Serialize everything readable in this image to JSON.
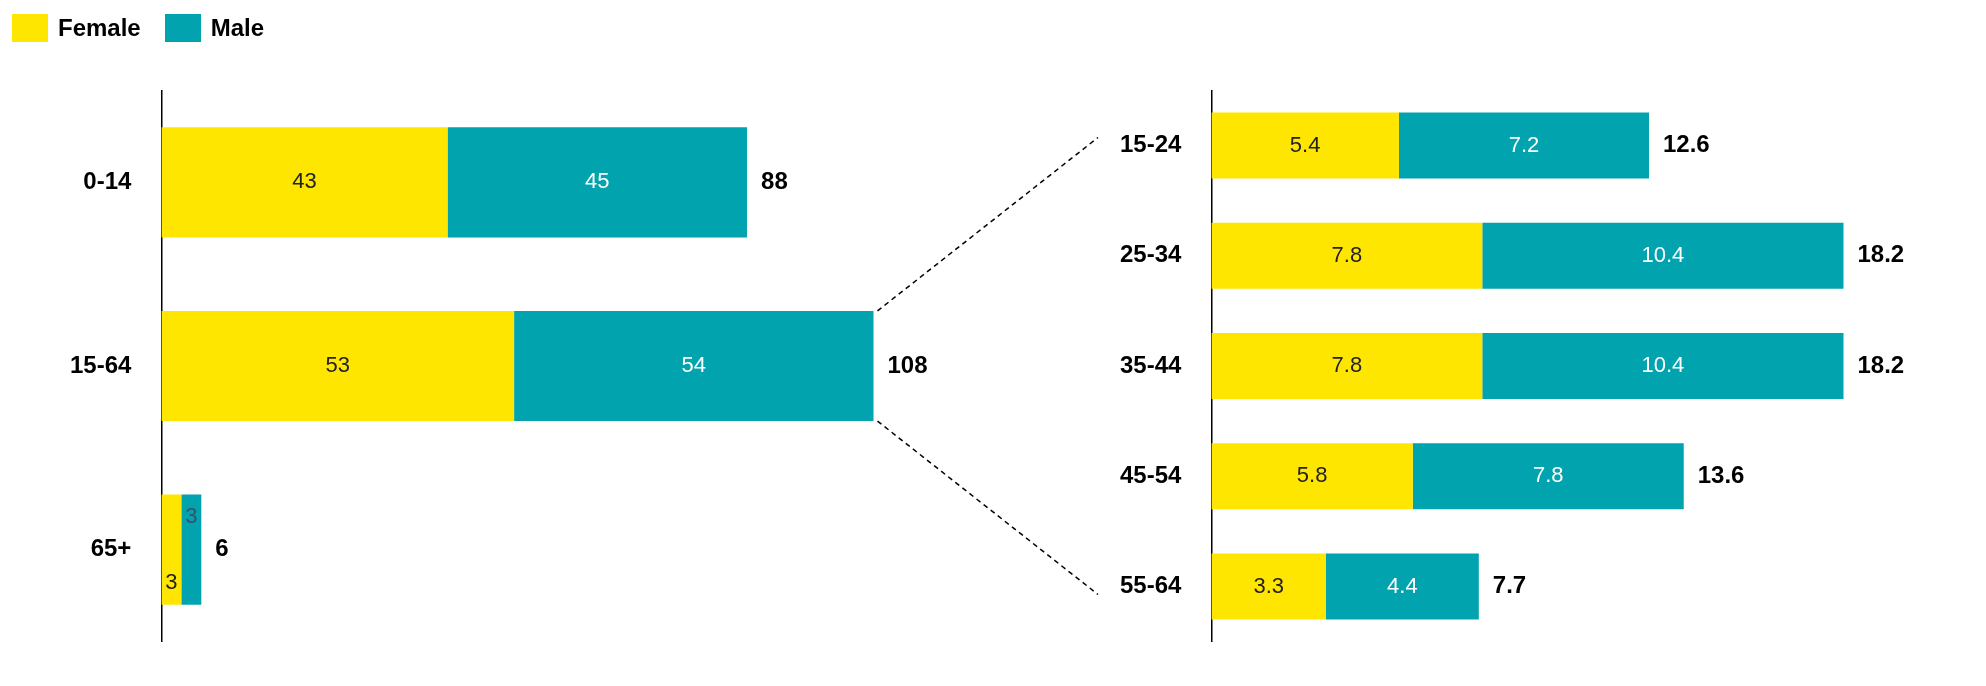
{
  "chart_data": [
    {
      "type": "bar",
      "orientation": "horizontal",
      "stacked": true,
      "categories": [
        "0-14",
        "15-64",
        "65+"
      ],
      "series": [
        {
          "name": "Female",
          "color": "#ffe600",
          "values": [
            43,
            53,
            3
          ]
        },
        {
          "name": "Male",
          "color": "#00a3ae",
          "values": [
            45,
            54,
            3
          ]
        }
      ],
      "data_labels": true,
      "totals": [
        "88",
        "108",
        "6"
      ],
      "legend": "top left",
      "tick_labels": "y"
    },
    {
      "type": "bar",
      "orientation": "horizontal",
      "stacked": true,
      "categories": [
        "15-24",
        "25-34",
        "35-44",
        "45-54",
        "55-64"
      ],
      "series": [
        {
          "color": "#ffe600",
          "values": [
            5.4,
            7.8,
            7.8,
            5.8,
            3.3
          ]
        },
        {
          "color": "#00a3ae",
          "values": [
            7.2,
            10.4,
            10.4,
            7.8,
            4.4
          ]
        }
      ],
      "data_labels": true,
      "totals": [
        "12.6",
        "18.2",
        "18.2",
        "13.6",
        "7.7"
      ],
      "tick_labels": "y"
    }
  ]
}
